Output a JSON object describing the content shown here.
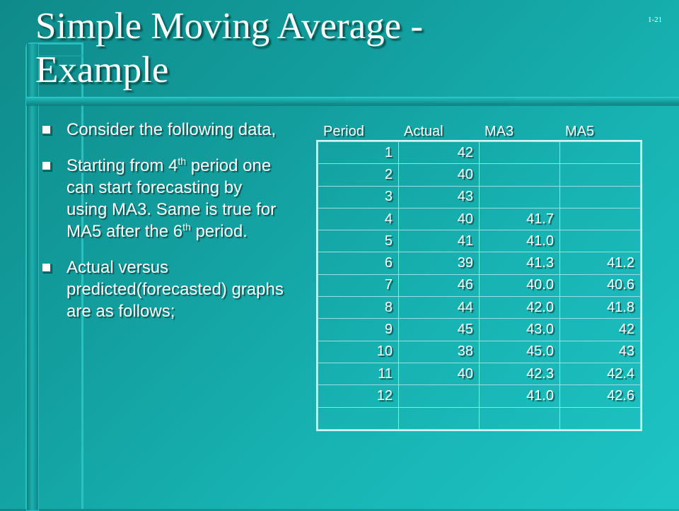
{
  "slide": {
    "page_number": "1-21",
    "title_line1": "Simple Moving Average -",
    "title_line2": "Example"
  },
  "bullets": [
    {
      "parts": [
        "Consider the following data,"
      ]
    },
    {
      "parts": [
        "Starting from 4",
        "th",
        " period one can start forecasting by using MA3. Same is true for MA5 after the 6",
        "th",
        " period."
      ]
    },
    {
      "parts": [
        "Actual versus predicted(forecasted) graphs are as follows;"
      ]
    }
  ],
  "table": {
    "headers": [
      "Period",
      "Actual",
      "MA3",
      "MA5"
    ],
    "rows": [
      [
        "1",
        "42",
        "",
        ""
      ],
      [
        "2",
        "40",
        "",
        ""
      ],
      [
        "3",
        "43",
        "",
        ""
      ],
      [
        "4",
        "40",
        "41.7",
        ""
      ],
      [
        "5",
        "41",
        "41.0",
        ""
      ],
      [
        "6",
        "39",
        "41.3",
        "41.2"
      ],
      [
        "7",
        "46",
        "40.0",
        "40.6"
      ],
      [
        "8",
        "44",
        "42.0",
        "41.8"
      ],
      [
        "9",
        "45",
        "43.0",
        "42"
      ],
      [
        "10",
        "38",
        "45.0",
        "43"
      ],
      [
        "11",
        "40",
        "42.3",
        "42.4"
      ],
      [
        "12",
        "",
        "41.0",
        "42.6"
      ],
      [
        "",
        "",
        "",
        ""
      ]
    ]
  }
}
